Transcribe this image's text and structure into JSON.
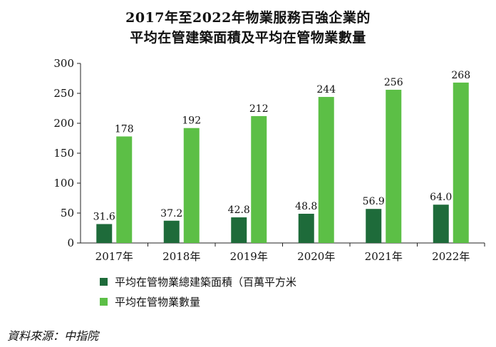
{
  "title_line1": "2017年至2022年物業服務百強企業的",
  "title_line2": "平均在管建築面積及平均在管物業數量",
  "source": "資料來源：中指院",
  "chart_data": {
    "type": "bar",
    "categories": [
      "2017年",
      "2018年",
      "2019年",
      "2020年",
      "2021年",
      "2022年"
    ],
    "series": [
      {
        "name": "平均在管物業總建築面積（百萬平方米",
        "color": "#1e6b3a",
        "values": [
          31.6,
          37.2,
          42.8,
          48.8,
          56.9,
          64.0
        ],
        "labels": [
          "31.6",
          "37.2",
          "42.8",
          "48.8",
          "56.9",
          "64.0"
        ]
      },
      {
        "name": "平均在管物業數量",
        "color": "#5cbf46",
        "values": [
          178,
          192,
          212,
          244,
          256,
          268
        ],
        "labels": [
          "178",
          "192",
          "212",
          "244",
          "256",
          "268"
        ]
      }
    ],
    "ylim": [
      0,
      300
    ],
    "yticks": [
      0,
      50,
      100,
      150,
      200,
      250,
      300
    ],
    "grid": false,
    "legend": "bottom-left"
  }
}
